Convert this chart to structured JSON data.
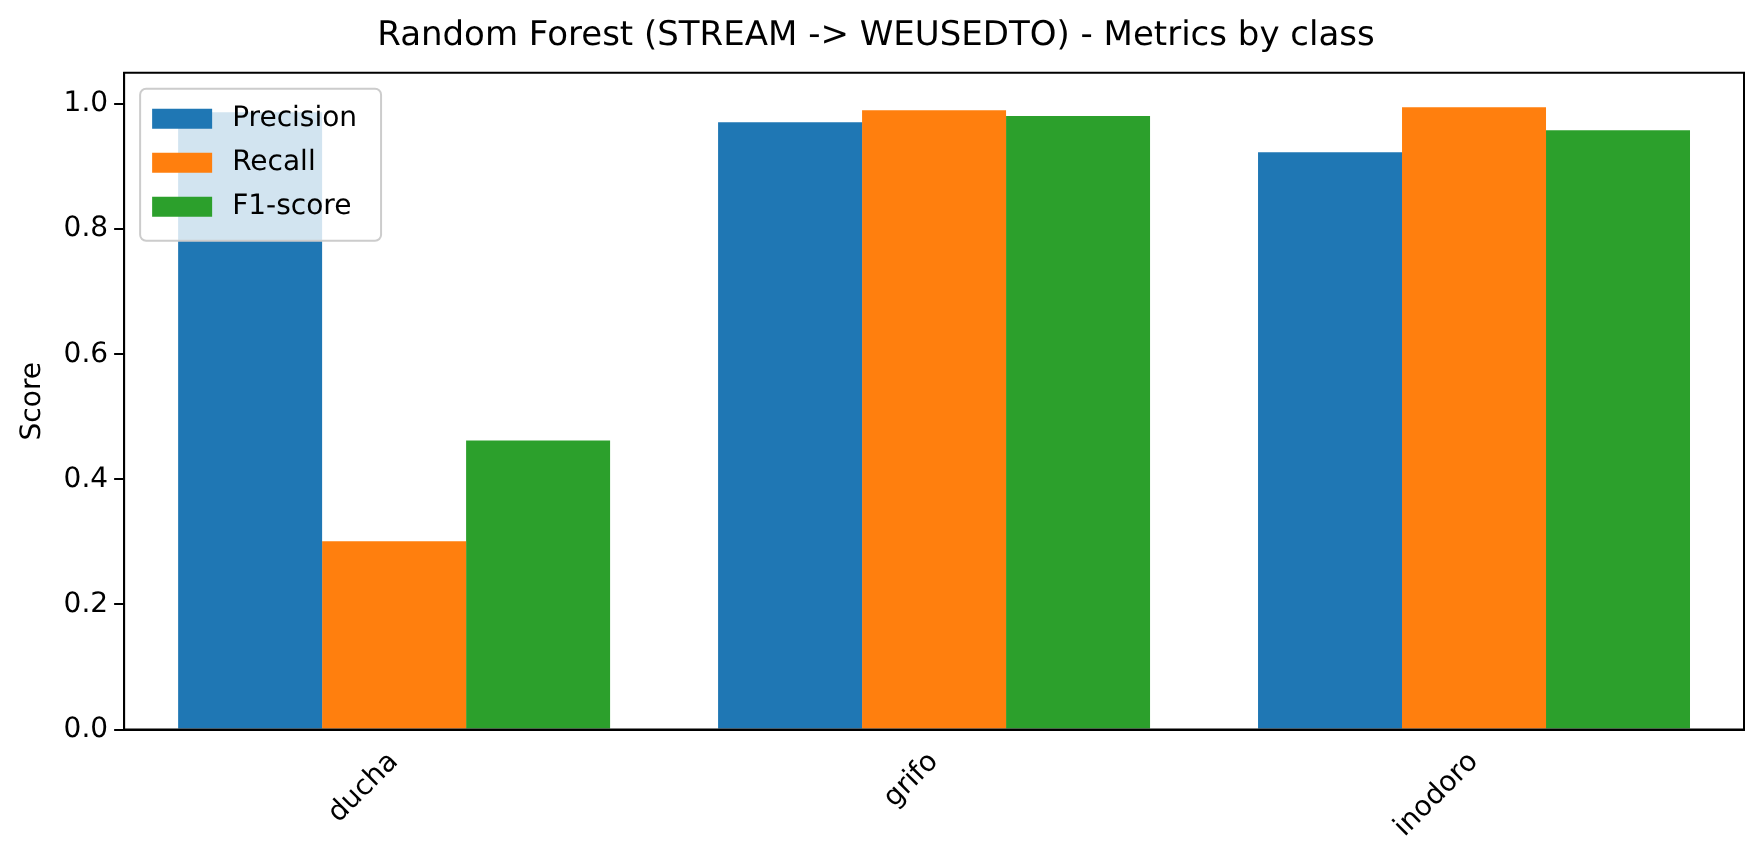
{
  "chart_data": {
    "type": "bar",
    "title": "Random Forest (STREAM -> WEUSEDTO) - Metrics by class",
    "ylabel": "Score",
    "categories": [
      "ducha",
      "grifo",
      "inodoro"
    ],
    "series": [
      {
        "name": "Precision",
        "color": "#1f77b4",
        "values": [
          0.987,
          0.971,
          0.923
        ]
      },
      {
        "name": "Recall",
        "color": "#ff7f0e",
        "values": [
          0.301,
          0.99,
          0.995
        ]
      },
      {
        "name": "F1-score",
        "color": "#2ca02c",
        "values": [
          0.462,
          0.981,
          0.958
        ]
      }
    ],
    "ylim": [
      0,
      1.05
    ],
    "yticks": [
      {
        "value": 0,
        "label": "0.0"
      },
      {
        "value": 0.2,
        "label": "0.2"
      },
      {
        "value": 0.4,
        "label": "0.4"
      },
      {
        "value": 0.6,
        "label": "0.6"
      },
      {
        "value": 0.8,
        "label": "0.8"
      },
      {
        "value": 1,
        "label": "1.0"
      }
    ],
    "grid": false,
    "legend": "top left"
  }
}
